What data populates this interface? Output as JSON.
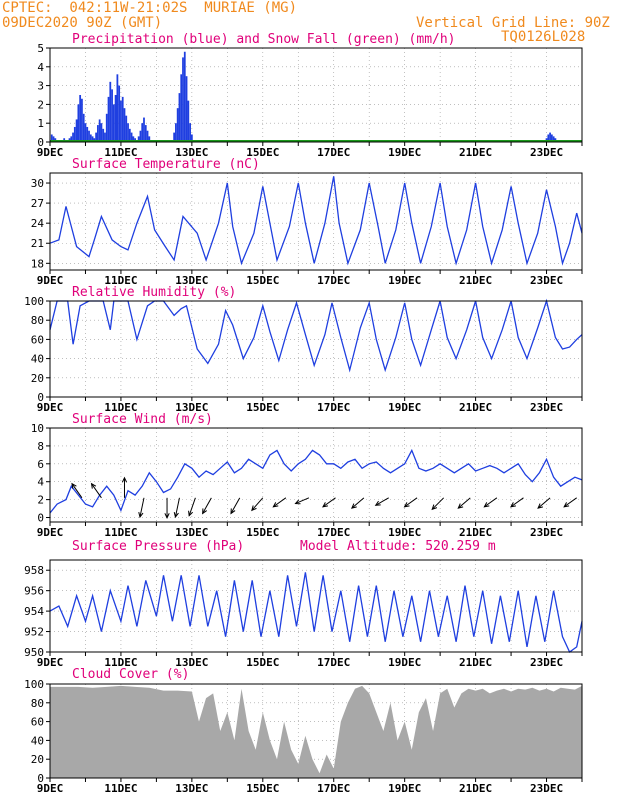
{
  "header": {
    "station": "CPTEC:  042:11W-21:02S  MURIAE (MG)",
    "run": "09DEC2020 90Z (GMT)",
    "grid": "Vertical Grid Line: 90Z",
    "model": "TQ0126L028"
  },
  "days": [
    "9DEC",
    "11DEC",
    "13DEC",
    "15DEC",
    "17DEC",
    "19DEC",
    "21DEC",
    "23DEC"
  ],
  "colors": {
    "title": "#e0007a",
    "header": "#f08a1e",
    "line": "#1f3fe0",
    "snow": "#1a9a1a",
    "cloud": "#a8a8a8",
    "axis": "#000000"
  },
  "chart_data": [
    {
      "id": "precip",
      "type": "bar",
      "title": "Precipitation (blue) and Snow Fall (green) (mm/h)",
      "ylim": [
        0,
        5
      ],
      "yticks": [
        0,
        1,
        2,
        3,
        4,
        5
      ],
      "xlim": [
        0,
        15
      ],
      "grid": "dashed",
      "series": [
        {
          "name": "Precipitation",
          "x": [
            0.05,
            0.1,
            0.15,
            0.2,
            0.3,
            0.4,
            0.5,
            0.55,
            0.6,
            0.65,
            0.7,
            0.75,
            0.8,
            0.85,
            0.9,
            0.95,
            1.0,
            1.05,
            1.1,
            1.15,
            1.2,
            1.25,
            1.3,
            1.35,
            1.4,
            1.45,
            1.5,
            1.55,
            1.6,
            1.65,
            1.7,
            1.75,
            1.8,
            1.85,
            1.9,
            1.95,
            2.0,
            2.05,
            2.1,
            2.15,
            2.2,
            2.25,
            2.3,
            2.35,
            2.4,
            2.45,
            2.5,
            2.55,
            2.6,
            2.65,
            2.7,
            2.75,
            2.8,
            2.85,
            3.5,
            3.55,
            3.6,
            3.65,
            3.7,
            3.75,
            3.8,
            3.85,
            3.9,
            3.95,
            4.0,
            4.05,
            14.0,
            14.05,
            14.1,
            14.15,
            14.2,
            14.25,
            14.3
          ],
          "values": [
            0.4,
            0.3,
            0.2,
            0.1,
            0.1,
            0.2,
            0.1,
            0.2,
            0.3,
            0.5,
            0.8,
            1.2,
            2.0,
            2.5,
            2.3,
            1.5,
            1.0,
            0.8,
            0.6,
            0.4,
            0.3,
            0.2,
            0.5,
            0.9,
            1.2,
            1.0,
            0.7,
            0.5,
            1.5,
            2.4,
            3.2,
            2.8,
            2.0,
            2.5,
            3.6,
            3.0,
            2.2,
            2.4,
            1.8,
            1.4,
            1.0,
            0.7,
            0.5,
            0.3,
            0.2,
            0.1,
            0.3,
            0.6,
            1.0,
            1.3,
            0.9,
            0.6,
            0.3,
            0.1,
            0.5,
            1.0,
            1.8,
            2.6,
            3.6,
            4.5,
            4.8,
            3.5,
            2.2,
            1.0,
            0.4,
            0.1,
            0.2,
            0.4,
            0.5,
            0.4,
            0.3,
            0.2,
            0.1
          ]
        },
        {
          "name": "Snow Fall",
          "x": [
            0,
            15
          ],
          "values": [
            0,
            0
          ]
        }
      ]
    },
    {
      "id": "temp",
      "type": "line",
      "title": "Surface Temperature (nC)",
      "ylim": [
        17,
        31.5
      ],
      "yticks": [
        18,
        21,
        24,
        27,
        30
      ],
      "xlim": [
        0,
        15
      ],
      "x": [
        0,
        0.25,
        0.45,
        0.6,
        0.75,
        1.1,
        1.25,
        1.45,
        1.75,
        2.0,
        2.2,
        2.45,
        2.75,
        2.95,
        3.25,
        3.5,
        3.75,
        4.15,
        4.4,
        4.75,
        5.0,
        5.15,
        5.4,
        5.75,
        6.0,
        6.2,
        6.4,
        6.75,
        7.0,
        7.2,
        7.45,
        7.75,
        8.0,
        8.15,
        8.4,
        8.75,
        9.0,
        9.25,
        9.45,
        9.75,
        10.0,
        10.2,
        10.45,
        10.75,
        11.0,
        11.2,
        11.45,
        11.75,
        12.0,
        12.2,
        12.45,
        12.75,
        13.0,
        13.2,
        13.45,
        13.75,
        14.0,
        14.25,
        14.45,
        14.65,
        14.85,
        15.0
      ],
      "values": [
        21,
        21.5,
        26.5,
        23.5,
        20.5,
        19,
        21.5,
        25,
        21.5,
        20.5,
        20,
        24,
        28,
        23,
        20.5,
        18.5,
        25,
        22.5,
        18.5,
        24,
        30,
        23.5,
        18,
        22.5,
        29.5,
        24,
        18.5,
        23.5,
        30,
        24,
        18,
        24,
        31,
        24,
        18,
        23,
        30,
        23.5,
        18,
        23,
        30,
        24,
        18,
        23.5,
        30,
        23.5,
        18,
        23,
        30,
        23.5,
        18,
        23,
        29.5,
        24,
        18,
        22.5,
        29,
        23.5,
        18,
        21,
        25.5,
        22.5
      ]
    },
    {
      "id": "rh",
      "type": "line",
      "title": "Relative Humidity (%)",
      "ylim": [
        0,
        100
      ],
      "yticks": [
        0,
        20,
        40,
        60,
        80,
        100
      ],
      "xlim": [
        0,
        15
      ],
      "x": [
        0,
        0.2,
        0.5,
        0.65,
        0.85,
        1.1,
        1.5,
        1.7,
        1.8,
        2.0,
        2.2,
        2.45,
        2.75,
        2.95,
        3.2,
        3.5,
        3.7,
        3.85,
        4.15,
        4.45,
        4.75,
        4.95,
        5.15,
        5.45,
        5.75,
        6.0,
        6.2,
        6.45,
        6.7,
        6.95,
        7.2,
        7.45,
        7.75,
        7.95,
        8.2,
        8.45,
        8.75,
        9.0,
        9.2,
        9.45,
        9.75,
        10.0,
        10.2,
        10.45,
        10.75,
        11.0,
        11.2,
        11.45,
        11.75,
        12.0,
        12.2,
        12.45,
        12.75,
        13.0,
        13.2,
        13.45,
        13.75,
        14.0,
        14.25,
        14.45,
        14.65,
        14.85,
        15.0
      ],
      "values": [
        70,
        100,
        100,
        55,
        95,
        100,
        100,
        70,
        100,
        100,
        100,
        60,
        95,
        100,
        100,
        85,
        92,
        95,
        50,
        35,
        55,
        90,
        75,
        40,
        62,
        95,
        68,
        38,
        70,
        98,
        65,
        33,
        65,
        98,
        62,
        28,
        72,
        98,
        60,
        28,
        62,
        98,
        60,
        33,
        70,
        100,
        62,
        40,
        70,
        100,
        62,
        40,
        70,
        100,
        62,
        40,
        72,
        100,
        62,
        50,
        52,
        60,
        65
      ]
    },
    {
      "id": "wind",
      "type": "line",
      "title": "Surface Wind (m/s)",
      "ylim": [
        -0.5,
        10
      ],
      "yticks": [
        0,
        2,
        4,
        6,
        8,
        10
      ],
      "xlim": [
        0,
        15
      ],
      "x": [
        0,
        0.2,
        0.45,
        0.6,
        0.8,
        1.0,
        1.2,
        1.4,
        1.6,
        1.8,
        2.0,
        2.2,
        2.4,
        2.6,
        2.8,
        3.0,
        3.2,
        3.4,
        3.6,
        3.8,
        4.0,
        4.2,
        4.4,
        4.6,
        4.8,
        5.0,
        5.2,
        5.4,
        5.6,
        5.8,
        6.0,
        6.2,
        6.4,
        6.6,
        6.8,
        7.0,
        7.2,
        7.4,
        7.6,
        7.8,
        8.0,
        8.2,
        8.4,
        8.6,
        8.8,
        9.0,
        9.2,
        9.4,
        9.6,
        9.8,
        10.0,
        10.2,
        10.4,
        10.6,
        10.8,
        11.0,
        11.2,
        11.4,
        11.6,
        11.8,
        12.0,
        12.2,
        12.4,
        12.6,
        12.8,
        13.0,
        13.2,
        13.4,
        13.6,
        13.8,
        14.0,
        14.2,
        14.4,
        14.6,
        14.8,
        15.0
      ],
      "values": [
        0.5,
        1.5,
        2,
        3.5,
        2.5,
        1.5,
        1.2,
        2.5,
        3.5,
        2.5,
        0.8,
        3,
        2.5,
        3.5,
        5,
        4,
        2.8,
        3.2,
        4.5,
        6,
        5.5,
        4.5,
        5.2,
        4.8,
        5.5,
        6.2,
        5,
        5.5,
        6.5,
        6,
        5.5,
        7,
        7.5,
        6,
        5.2,
        6,
        6.5,
        7.5,
        7,
        6,
        6,
        5.5,
        6.2,
        6.5,
        5.5,
        6,
        6.2,
        5.5,
        5,
        5.5,
        6,
        7.5,
        5.5,
        5.2,
        5.5,
        6,
        5.5,
        5,
        5.5,
        6,
        5.2,
        5.5,
        5.8,
        5.5,
        5,
        5.5,
        6,
        4.8,
        4,
        5,
        6.5,
        4.5,
        3.5,
        4,
        4.5,
        4.2
      ],
      "vectors": [
        {
          "x": 0.9,
          "u": -1,
          "v": 1
        },
        {
          "x": 1.45,
          "u": -1,
          "v": 1
        },
        {
          "x": 2.1,
          "u": 0,
          "v": 1
        },
        {
          "x": 2.65,
          "u": -0.3,
          "v": -1
        },
        {
          "x": 3.3,
          "u": 0,
          "v": -1
        },
        {
          "x": 3.65,
          "u": -0.3,
          "v": -1
        },
        {
          "x": 4.1,
          "u": -0.5,
          "v": -1
        },
        {
          "x": 4.55,
          "u": -0.8,
          "v": -1
        },
        {
          "x": 5.35,
          "u": -0.8,
          "v": -1
        },
        {
          "x": 6.0,
          "u": -1,
          "v": -0.8
        },
        {
          "x": 6.65,
          "u": -1,
          "v": -0.5
        },
        {
          "x": 7.3,
          "u": -1,
          "v": -0.3
        },
        {
          "x": 8.05,
          "u": -1,
          "v": -0.5
        },
        {
          "x": 8.85,
          "u": -1,
          "v": -0.6
        },
        {
          "x": 9.55,
          "u": -1,
          "v": -0.4
        },
        {
          "x": 10.35,
          "u": -1,
          "v": -0.5
        },
        {
          "x": 11.1,
          "u": -1,
          "v": -0.7
        },
        {
          "x": 11.85,
          "u": -1,
          "v": -0.6
        },
        {
          "x": 12.6,
          "u": -1,
          "v": -0.5
        },
        {
          "x": 13.35,
          "u": -1,
          "v": -0.5
        },
        {
          "x": 14.1,
          "u": -1,
          "v": -0.6
        },
        {
          "x": 14.85,
          "u": -1,
          "v": -0.5
        }
      ]
    },
    {
      "id": "pres",
      "type": "line",
      "title": "Surface Pressure (hPa)",
      "subtitle": "Model Altitude: 520.259 m",
      "ylim": [
        950,
        959
      ],
      "yticks": [
        950,
        952,
        954,
        956,
        958
      ],
      "xlim": [
        0,
        15
      ],
      "x": [
        0,
        0.25,
        0.5,
        0.75,
        1.0,
        1.2,
        1.45,
        1.7,
        2.0,
        2.2,
        2.45,
        2.7,
        3.0,
        3.2,
        3.45,
        3.7,
        3.95,
        4.2,
        4.45,
        4.7,
        4.95,
        5.2,
        5.45,
        5.7,
        5.95,
        6.2,
        6.45,
        6.7,
        6.95,
        7.2,
        7.45,
        7.7,
        7.95,
        8.2,
        8.45,
        8.7,
        8.95,
        9.2,
        9.45,
        9.7,
        9.95,
        10.2,
        10.45,
        10.7,
        10.95,
        11.2,
        11.45,
        11.7,
        11.95,
        12.2,
        12.45,
        12.7,
        12.95,
        13.2,
        13.45,
        13.7,
        13.95,
        14.2,
        14.45,
        14.65,
        14.85,
        15.0
      ],
      "values": [
        954,
        954.5,
        952.5,
        955.5,
        953,
        955.5,
        952,
        956,
        953,
        956.5,
        952.5,
        957,
        953.5,
        957.5,
        953,
        957.5,
        952.5,
        957.5,
        952.5,
        956,
        951.5,
        957,
        952,
        957,
        951.5,
        956,
        951.5,
        957.5,
        952.5,
        957.8,
        952,
        957.5,
        952,
        956,
        951,
        956.5,
        951.5,
        956.5,
        951,
        956,
        951.5,
        955.5,
        951,
        956,
        951.5,
        955.5,
        951,
        956.5,
        951.5,
        956,
        950.8,
        955.5,
        951,
        956,
        950.5,
        955.5,
        951,
        956,
        951.5,
        950,
        950.5,
        953
      ]
    },
    {
      "id": "cloud",
      "type": "area",
      "title": "Cloud Cover (%)",
      "ylim": [
        0,
        100
      ],
      "yticks": [
        0,
        20,
        40,
        60,
        80,
        100
      ],
      "xlim": [
        0,
        15
      ],
      "x": [
        0,
        0.4,
        0.8,
        1.2,
        1.6,
        2.0,
        2.4,
        2.8,
        3.2,
        3.6,
        4.0,
        4.2,
        4.4,
        4.6,
        4.8,
        5.0,
        5.2,
        5.4,
        5.6,
        5.8,
        6.0,
        6.2,
        6.4,
        6.6,
        6.8,
        7.0,
        7.2,
        7.4,
        7.6,
        7.8,
        8.0,
        8.2,
        8.4,
        8.6,
        8.8,
        9.0,
        9.2,
        9.4,
        9.6,
        9.8,
        10.0,
        10.2,
        10.4,
        10.6,
        10.8,
        11.0,
        11.2,
        11.4,
        11.6,
        11.8,
        12.0,
        12.2,
        12.4,
        12.6,
        12.8,
        13.0,
        13.2,
        13.4,
        13.6,
        13.8,
        14.0,
        14.2,
        14.4,
        14.6,
        14.8,
        15.0
      ],
      "values": [
        97,
        97,
        97,
        96,
        97,
        98,
        97,
        96,
        93,
        93,
        92,
        60,
        85,
        90,
        50,
        70,
        40,
        95,
        50,
        30,
        70,
        40,
        20,
        60,
        30,
        15,
        45,
        20,
        5,
        25,
        10,
        60,
        80,
        95,
        98,
        90,
        70,
        50,
        80,
        40,
        60,
        30,
        70,
        85,
        50,
        90,
        95,
        75,
        90,
        95,
        93,
        95,
        90,
        93,
        95,
        92,
        95,
        94,
        96,
        93,
        95,
        92,
        96,
        95,
        94,
        98
      ]
    }
  ]
}
